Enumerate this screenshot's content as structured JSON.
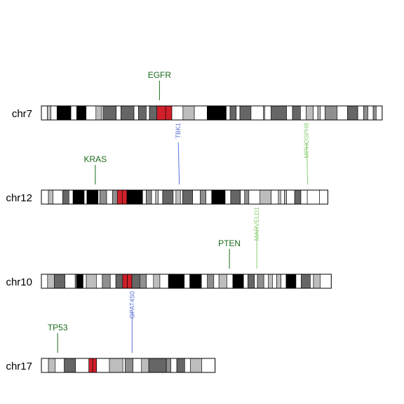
{
  "colors": {
    "gene_top": "#1a6b1a",
    "link_blue": "#5a70d8",
    "link_green": "#8ccf76",
    "centromere": "#d0202a",
    "outline": "#000000"
  },
  "chromosomes": [
    {
      "name": "chr7",
      "length": 159.3,
      "bands": [
        [
          0,
          2.8,
          "gneg"
        ],
        [
          2.8,
          4.5,
          "gpos25"
        ],
        [
          4.5,
          7.3,
          "gneg"
        ],
        [
          7.3,
          13.8,
          "gpos100"
        ],
        [
          13.8,
          16.5,
          "gneg"
        ],
        [
          16.5,
          20.9,
          "gpos100"
        ],
        [
          20.9,
          25.5,
          "gneg"
        ],
        [
          25.5,
          28.0,
          "gpos25"
        ],
        [
          28.0,
          28.8,
          "gneg"
        ],
        [
          28.8,
          35.0,
          "gpos75"
        ],
        [
          35.0,
          37.2,
          "gneg"
        ],
        [
          37.2,
          43.3,
          "gpos75"
        ],
        [
          43.3,
          45.4,
          "gneg"
        ],
        [
          45.4,
          49.0,
          "gpos75"
        ],
        [
          49.0,
          50.5,
          "gneg"
        ],
        [
          50.5,
          54.0,
          "gpos75"
        ],
        [
          54.0,
          58.1,
          "acen"
        ],
        [
          58.1,
          61.0,
          "acen"
        ],
        [
          61.0,
          66.2,
          "gneg"
        ],
        [
          66.2,
          71.5,
          "gpos25"
        ],
        [
          71.5,
          77.5,
          "gneg"
        ],
        [
          77.5,
          86.4,
          "gpos100"
        ],
        [
          86.4,
          88.2,
          "gneg"
        ],
        [
          88.2,
          91.1,
          "gpos75"
        ],
        [
          91.1,
          92.8,
          "gneg"
        ],
        [
          92.8,
          98.0,
          "gpos75"
        ],
        [
          98.0,
          103.8,
          "gneg"
        ],
        [
          103.8,
          104.5,
          "gpos25"
        ],
        [
          104.5,
          107.4,
          "gneg"
        ],
        [
          107.4,
          114.6,
          "gpos75"
        ],
        [
          114.6,
          117.4,
          "gneg"
        ],
        [
          117.4,
          121.1,
          "gpos75"
        ],
        [
          121.1,
          123.8,
          "gneg"
        ],
        [
          123.8,
          127.1,
          "gpos25"
        ],
        [
          127.1,
          129.2,
          "gneg"
        ],
        [
          129.2,
          130.4,
          "gpos25"
        ],
        [
          130.4,
          132.6,
          "gneg"
        ],
        [
          132.6,
          138.2,
          "gpos50"
        ],
        [
          138.2,
          143.1,
          "gneg"
        ],
        [
          143.1,
          147.9,
          "gpos75"
        ],
        [
          147.9,
          150.6,
          "gneg"
        ],
        [
          150.6,
          152.6,
          "gpos50"
        ],
        [
          152.6,
          155.1,
          "gneg"
        ],
        [
          155.1,
          156.5,
          "gpos50"
        ],
        [
          156.5,
          159.3,
          "gneg"
        ]
      ],
      "genes_above": [
        {
          "label": "EGFR",
          "position": 55.2
        }
      ]
    },
    {
      "name": "chr12",
      "length": 133.9,
      "bands": [
        [
          0,
          3.3,
          "gneg"
        ],
        [
          3.3,
          5.4,
          "gpos25"
        ],
        [
          5.4,
          10.0,
          "gneg"
        ],
        [
          10.0,
          12.9,
          "gpos75"
        ],
        [
          12.9,
          14.8,
          "gneg"
        ],
        [
          14.8,
          20.0,
          "gpos100"
        ],
        [
          20.0,
          21.3,
          "gneg"
        ],
        [
          21.3,
          26.5,
          "gpos100"
        ],
        [
          26.5,
          27.3,
          "gneg"
        ],
        [
          27.3,
          30.5,
          "gpos50"
        ],
        [
          30.5,
          33.3,
          "gneg"
        ],
        [
          33.3,
          35.5,
          "gpos50"
        ],
        [
          35.5,
          37.8,
          "acen"
        ],
        [
          37.8,
          40.0,
          "acen"
        ],
        [
          40.0,
          43.5,
          "gpos100"
        ],
        [
          43.5,
          47.3,
          "gpos100"
        ],
        [
          47.3,
          49.0,
          "gneg"
        ],
        [
          49.0,
          51.5,
          "gpos50"
        ],
        [
          51.5,
          53.4,
          "gneg"
        ],
        [
          53.4,
          54.7,
          "gpos25"
        ],
        [
          54.7,
          56.7,
          "gneg"
        ],
        [
          56.7,
          61.6,
          "gpos75"
        ],
        [
          61.6,
          62.9,
          "gneg"
        ],
        [
          62.9,
          65.0,
          "gpos25"
        ],
        [
          65.0,
          66.0,
          "gneg"
        ],
        [
          66.0,
          70.7,
          "gpos75"
        ],
        [
          70.7,
          74.2,
          "gneg"
        ],
        [
          74.2,
          76.9,
          "gpos50"
        ],
        [
          76.9,
          79.6,
          "gneg"
        ],
        [
          79.6,
          85.9,
          "gpos100"
        ],
        [
          85.9,
          88.5,
          "gneg"
        ],
        [
          88.5,
          93.0,
          "gpos75"
        ],
        [
          93.0,
          95.0,
          "gneg"
        ],
        [
          95.0,
          97.0,
          "gpos50"
        ],
        [
          97.0,
          102.2,
          "gneg"
        ],
        [
          102.2,
          107.4,
          "gpos25"
        ],
        [
          107.4,
          110.8,
          "gneg"
        ],
        [
          110.8,
          111.9,
          "gpos25"
        ],
        [
          111.9,
          113.6,
          "gneg"
        ],
        [
          113.6,
          114.6,
          "gpos25"
        ],
        [
          114.6,
          118.4,
          "gneg"
        ],
        [
          118.4,
          121.3,
          "gpos75"
        ],
        [
          121.3,
          124.3,
          "gneg"
        ],
        [
          124.3,
          130.0,
          "gneg"
        ],
        [
          130.0,
          133.9,
          "gneg"
        ]
      ],
      "genes_above": [
        {
          "label": "KRAS",
          "position": 25.2
        }
      ]
    },
    {
      "name": "chr10",
      "length": 135.5,
      "bands": [
        [
          0,
          2.9,
          "gneg"
        ],
        [
          2.9,
          6.0,
          "gpos25"
        ],
        [
          6.0,
          11.0,
          "gpos75"
        ],
        [
          11.0,
          15.8,
          "gneg"
        ],
        [
          15.8,
          16.5,
          "gpos50"
        ],
        [
          16.5,
          19.5,
          "gpos100"
        ],
        [
          19.5,
          21.0,
          "gneg"
        ],
        [
          21.0,
          25.7,
          "gpos25"
        ],
        [
          25.7,
          28.5,
          "gneg"
        ],
        [
          28.5,
          32.2,
          "gpos50"
        ],
        [
          32.2,
          34.8,
          "gneg"
        ],
        [
          34.8,
          38.0,
          "gpos75"
        ],
        [
          38.0,
          40.2,
          "acen"
        ],
        [
          40.2,
          42.3,
          "acen"
        ],
        [
          42.3,
          46.0,
          "gpos75"
        ],
        [
          46.0,
          49.1,
          "gpos50"
        ],
        [
          49.1,
          52.4,
          "gneg"
        ],
        [
          52.4,
          55.4,
          "gpos25"
        ],
        [
          55.4,
          59.4,
          "gneg"
        ],
        [
          59.4,
          66.8,
          "gpos100"
        ],
        [
          66.8,
          69.4,
          "gneg"
        ],
        [
          69.4,
          74.8,
          "gpos100"
        ],
        [
          74.8,
          77.6,
          "gneg"
        ],
        [
          77.6,
          80.6,
          "gpos50"
        ],
        [
          80.6,
          83.0,
          "gneg"
        ],
        [
          83.0,
          86.7,
          "gpos25"
        ],
        [
          86.7,
          89.5,
          "gneg"
        ],
        [
          89.5,
          94.5,
          "gpos100"
        ],
        [
          94.5,
          96.5,
          "gneg"
        ],
        [
          96.5,
          99.6,
          "gpos75"
        ],
        [
          99.6,
          101.0,
          "gneg"
        ],
        [
          101.0,
          104.0,
          "gpos50"
        ],
        [
          104.0,
          106.0,
          "gneg"
        ],
        [
          106.0,
          108.0,
          "gpos25"
        ],
        [
          108.0,
          110.0,
          "gneg"
        ],
        [
          110.0,
          112.0,
          "gpos25"
        ],
        [
          112.0,
          114.4,
          "gneg"
        ],
        [
          114.4,
          119.0,
          "gpos100"
        ],
        [
          119.0,
          121.5,
          "gneg"
        ],
        [
          121.5,
          125.7,
          "gpos75"
        ],
        [
          125.7,
          127.2,
          "gneg"
        ],
        [
          127.2,
          130.3,
          "gpos25"
        ],
        [
          130.3,
          135.5,
          "gneg"
        ]
      ],
      "genes_above": [
        {
          "label": "PTEN",
          "position": 87.9
        }
      ]
    },
    {
      "name": "chr17",
      "length": 81.2,
      "bands": [
        [
          0,
          3.3,
          "gneg"
        ],
        [
          3.3,
          6.5,
          "gpos25"
        ],
        [
          6.5,
          10.7,
          "gneg"
        ],
        [
          10.7,
          16.0,
          "gpos75"
        ],
        [
          16.0,
          22.2,
          "gneg"
        ],
        [
          22.2,
          24.0,
          "acen"
        ],
        [
          24.0,
          25.8,
          "acen"
        ],
        [
          25.8,
          31.8,
          "gneg"
        ],
        [
          31.8,
          38.1,
          "gpos25"
        ],
        [
          38.1,
          39.2,
          "gneg"
        ],
        [
          39.2,
          42.8,
          "gpos50"
        ],
        [
          42.8,
          46.8,
          "gneg"
        ],
        [
          46.8,
          50.2,
          "gpos25"
        ],
        [
          50.2,
          58.4,
          "gpos75"
        ],
        [
          58.4,
          60.5,
          "gpos50"
        ],
        [
          60.5,
          63.3,
          "gneg"
        ],
        [
          63.3,
          67.0,
          "gpos75"
        ],
        [
          67.0,
          69.6,
          "gneg"
        ],
        [
          69.6,
          75.0,
          "gpos25"
        ],
        [
          75.0,
          81.2,
          "gneg"
        ]
      ],
      "genes_above": [
        {
          "label": "TP53",
          "position": 7.6
        }
      ]
    }
  ],
  "links": [
    {
      "label": "TBK1",
      "color": "blue",
      "from_chr": "chr7",
      "to_chr": "chr12",
      "from_pos": 64.0,
      "to_pos": 64.5
    },
    {
      "label": "MPHOSPH8",
      "color": "green",
      "from_chr": "chr7",
      "to_chr": "chr12",
      "from_pos": 124.0,
      "to_pos": 124.5
    },
    {
      "label": "MARVELD1",
      "color": "green",
      "from_chr": "chr12",
      "to_chr": "chr10",
      "from_pos": 100.7,
      "to_pos": 100.7
    },
    {
      "label": "GPAT4S0",
      "color": "blue",
      "from_chr": "chr10",
      "to_chr": "chr17",
      "from_pos": 42.4,
      "to_pos": 42.4
    }
  ]
}
